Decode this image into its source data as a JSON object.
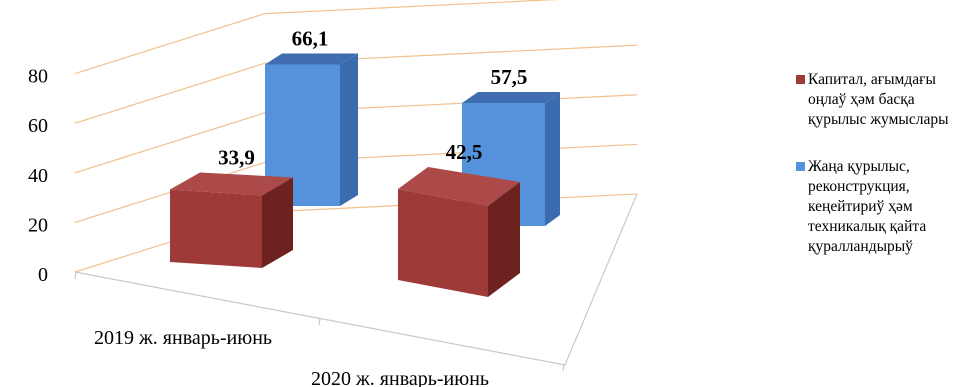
{
  "chart_data": {
    "type": "bar",
    "style": "3d-clustered-column",
    "categories": [
      "2019 ж. январь-июнь",
      "2020 ж. январь-июнь"
    ],
    "series": [
      {
        "name": "Капитал, ағымдағы оңлаў ҳәм басқа қурылыс жумыслары",
        "values": [
          33.9,
          42.5
        ],
        "color": "#9e3a38"
      },
      {
        "name": "Жаңа қурылыс, реконструкция, кеңейтириў ҳәм техникалық қайта қуралландырыў",
        "values": [
          66.1,
          57.5
        ],
        "color": "#5592db"
      }
    ],
    "data_labels": [
      "33,9",
      "42,5",
      "66,1",
      "57,5"
    ],
    "yticks": [
      "0",
      "20",
      "40",
      "60",
      "80"
    ],
    "ylim": [
      0,
      80
    ],
    "grid": true,
    "legend_position": "right"
  }
}
